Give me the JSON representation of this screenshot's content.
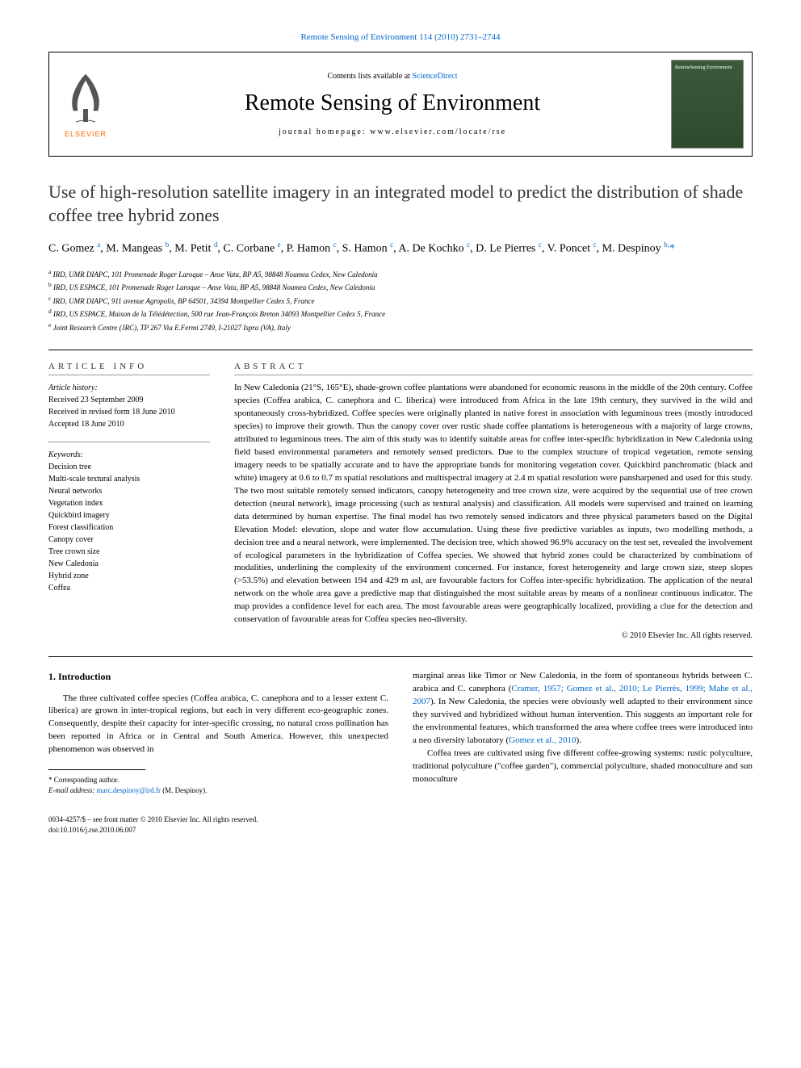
{
  "journal_ref": "Remote Sensing of Environment 114 (2010) 2731–2744",
  "header": {
    "contents_prefix": "Contents lists available at ",
    "contents_link": "ScienceDirect",
    "journal_title": "Remote Sensing of Environment",
    "homepage_prefix": "journal homepage: ",
    "homepage": "www.elsevier.com/locate/rse",
    "elsevier_label": "ELSEVIER",
    "cover_text": "RemoteSensing Environment"
  },
  "title": "Use of high-resolution satellite imagery in an integrated model to predict the distribution of shade coffee tree hybrid zones",
  "authors_html": "C. Gomez <sup>a</sup>, M. Mangeas <sup>b</sup>, M. Petit <sup>d</sup>, C. Corbane <sup>e</sup>, P. Hamon <sup>c</sup>, S. Hamon <sup>c</sup>, A. De Kochko <sup>c</sup>, D. Le Pierres <sup>c</sup>, V. Poncet <sup>c</sup>, M. Despinoy <sup>b,</sup><a>*</a>",
  "affiliations": [
    "a IRD, UMR DIAPC, 101 Promenade Roger Laroque – Anse Vata, BP A5, 98848 Noumea Cedex, New Caledonia",
    "b IRD, US ESPACE, 101 Promenade Roger Laroque – Anse Vata, BP A5, 98848 Noumea Cedex, New Caledonia",
    "c IRD, UMR DIAPC, 911 avenue Agropolis, BP 64501, 34394 Montpellier Cedex 5, France",
    "d IRD, US ESPACE, Maison de la Télédétection, 500 rue Jean-François Breton 34093 Montpellier Cedex 5, France",
    "e Joint Research Centre (JRC), TP 267 Via E.Fermi 2749, I-21027 Ispra (VA), Italy"
  ],
  "info": {
    "heading_info": "ARTICLE INFO",
    "heading_abstract": "ABSTRACT",
    "history_label": "Article history:",
    "history": [
      "Received 23 September 2009",
      "Received in revised form 18 June 2010",
      "Accepted 18 June 2010"
    ],
    "keywords_label": "Keywords:",
    "keywords": [
      "Decision tree",
      "Multi-scale textural analysis",
      "Neural networks",
      "Vegetation index",
      "Quickbird imagery",
      "Forest classification",
      "Canopy cover",
      "Tree crown size",
      "New Caledonia",
      "Hybrid zone",
      "Coffea"
    ]
  },
  "abstract": "In New Caledonia (21°S, 165°E), shade-grown coffee plantations were abandoned for economic reasons in the middle of the 20th century. Coffee species (Coffea arabica, C. canephora and C. liberica) were introduced from Africa in the late 19th century, they survived in the wild and spontaneously cross-hybridized. Coffee species were originally planted in native forest in association with leguminous trees (mostly introduced species) to improve their growth. Thus the canopy cover over rustic shade coffee plantations is heterogeneous with a majority of large crowns, attributed to leguminous trees. The aim of this study was to identify suitable areas for coffee inter-specific hybridization in New Caledonia using field based environmental parameters and remotely sensed predictors. Due to the complex structure of tropical vegetation, remote sensing imagery needs to be spatially accurate and to have the appropriate bands for monitoring vegetation cover. Quickbird panchromatic (black and white) imagery at 0.6 to 0.7 m spatial resolutions and multispectral imagery at 2.4 m spatial resolution were pansharpened and used for this study. The two most suitable remotely sensed indicators, canopy heterogeneity and tree crown size, were acquired by the sequential use of tree crown detection (neural network), image processing (such as textural analysis) and classification. All models were supervised and trained on learning data determined by human expertise. The final model has two remotely sensed indicators and three physical parameters based on the Digital Elevation Model: elevation, slope and water flow accumulation. Using these five predictive variables as inputs, two modelling methods, a decision tree and a neural network, were implemented. The decision tree, which showed 96.9% accuracy on the test set, revealed the involvement of ecological parameters in the hybridization of Coffea species. We showed that hybrid zones could be characterized by combinations of modalities, underlining the complexity of the environment concerned. For instance, forest heterogeneity and large crown size, steep slopes (>53.5%) and elevation between 194 and 429 m asl, are favourable factors for Coffea inter-specific hybridization. The application of the neural network on the whole area gave a predictive map that distinguished the most suitable areas by means of a nonlinear continuous indicator. The map provides a confidence level for each area. The most favourable areas were geographically localized, providing a clue for the detection and conservation of favourable areas for Coffea species neo-diversity.",
  "copyright": "© 2010 Elsevier Inc. All rights reserved.",
  "intro": {
    "heading": "1. Introduction",
    "col1_p1": "The three cultivated coffee species (Coffea arabica, C. canephora and to a lesser extent C. liberica) are grown in inter-tropical regions, but each in very different eco-geographic zones. Consequently, despite their capacity for inter-specific crossing, no natural cross pollination has been reported in Africa or in Central and South America. However, this unexpected phenomenon was observed in",
    "col2_p1_a": "marginal areas like Timor or New Caledonia, in the form of spontaneous hybrids between C. arabica and C. canephora (",
    "col2_cite1": "Cramer, 1957; Gomez et al., 2010; Le Pierrès, 1999; Mahe et al., 2007",
    "col2_p1_b": "). In New Caledonia, the species were obviously well adapted to their environment since they survived and hybridized without human intervention. This suggests an important role for the environmental features, which transformed the area where coffee trees were introduced into a neo diversity laboratory (",
    "col2_cite2": "Gomez et al., 2010",
    "col2_p1_c": ").",
    "col2_p2": "Coffea trees are cultivated using five different coffee-growing systems: rustic polyculture, traditional polyculture (\"coffee garden\"), commercial polyculture, shaded monoculture and sun monoculture"
  },
  "footnotes": {
    "corr": "* Corresponding author.",
    "email_label": "E-mail address: ",
    "email": "marc.despinoy@ird.fr",
    "email_suffix": " (M. Despinoy)."
  },
  "footer": {
    "line1": "0034-4257/$ – see front matter © 2010 Elsevier Inc. All rights reserved.",
    "line2": "doi:10.1016/j.rse.2010.06.007"
  },
  "colors": {
    "link": "#0066cc",
    "elsevier_orange": "#ff6600",
    "text": "#000000",
    "cover_bg": "#3a5a3a"
  }
}
